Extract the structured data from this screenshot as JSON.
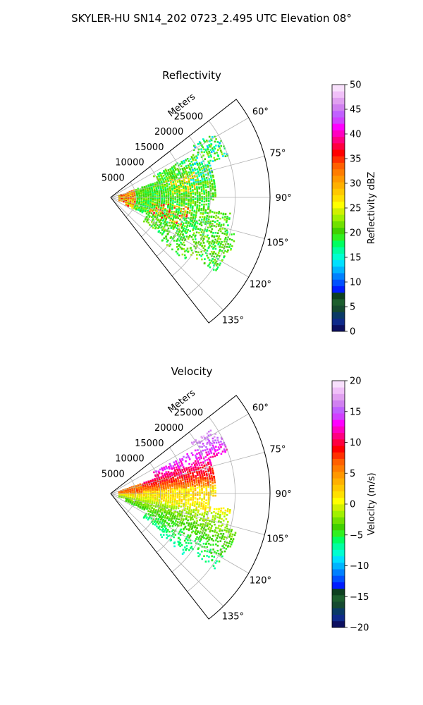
{
  "figure": {
    "suptitle": "SKYLER-HU  SN14_202  0723_2.495 UTC Elevation 08°"
  },
  "chart_data": [
    {
      "type": "polar-sector",
      "title": "Reflectivity",
      "radial_label": "Meters",
      "radial_ticks": [
        "5000",
        "10000",
        "15000",
        "20000",
        "25000"
      ],
      "radial_tick_values": [
        5000,
        10000,
        15000,
        20000,
        25000
      ],
      "rlim": [
        0,
        32000
      ],
      "theta_range_deg": [
        52,
        142
      ],
      "angle_ticks": [
        "60°",
        "75°",
        "90°",
        "105°",
        "120°",
        "135°"
      ],
      "angle_tick_values": [
        60,
        75,
        90,
        105,
        120,
        135
      ],
      "grid": true,
      "colorbar": {
        "label": "Reflectivity dBZ",
        "range": [
          0,
          50
        ],
        "ticks": [
          "0",
          "5",
          "10",
          "15",
          "20",
          "25",
          "30",
          "35",
          "40",
          "45",
          "50"
        ],
        "colors": [
          "#0d1060",
          "#0f2a8a",
          "#0a3a66",
          "#154a30",
          "#1c5e2e",
          "#0e4020",
          "#001cff",
          "#0050ff",
          "#0080ff",
          "#00b4ff",
          "#00e0ff",
          "#00ffd0",
          "#00ffa0",
          "#00ff60",
          "#30f020",
          "#40d000",
          "#70e000",
          "#a0f000",
          "#d0f000",
          "#ffff00",
          "#ffe000",
          "#ffc800",
          "#ffb000",
          "#ff9800",
          "#ff7c00",
          "#ff6000",
          "#ff3000",
          "#ff0000",
          "#ff0040",
          "#ff0080",
          "#ff00c0",
          "#ff00ff",
          "#d040ff",
          "#c060ff",
          "#d080f0",
          "#e0a0f0",
          "#f0c0f8",
          "#f8e0fc"
        ]
      }
    },
    {
      "type": "polar-sector",
      "title": "Velocity",
      "radial_label": "Meters",
      "radial_ticks": [
        "5000",
        "10000",
        "15000",
        "20000",
        "25000"
      ],
      "radial_tick_values": [
        5000,
        10000,
        15000,
        20000,
        25000
      ],
      "rlim": [
        0,
        32000
      ],
      "theta_range_deg": [
        52,
        142
      ],
      "angle_ticks": [
        "60°",
        "75°",
        "90°",
        "105°",
        "120°",
        "135°"
      ],
      "angle_tick_values": [
        60,
        75,
        90,
        105,
        120,
        135
      ],
      "grid": true,
      "colorbar": {
        "label": "Velocity (m/s)",
        "range": [
          -20,
          20
        ],
        "ticks": [
          "−20",
          "−15",
          "−10",
          "−5",
          "0",
          "5",
          "10",
          "15",
          "20"
        ],
        "colors": [
          "#0d1060",
          "#0f2a8a",
          "#0a3a66",
          "#154a30",
          "#1c5e2e",
          "#0e4020",
          "#001cff",
          "#0050ff",
          "#0080ff",
          "#00b4ff",
          "#00e0ff",
          "#00ffd0",
          "#00ffa0",
          "#00ff60",
          "#30f020",
          "#40d000",
          "#70e000",
          "#a0f000",
          "#d0f000",
          "#ffff00",
          "#ffe000",
          "#ffc800",
          "#ffb000",
          "#ff9800",
          "#ff7c00",
          "#ff6000",
          "#ff3000",
          "#ff0000",
          "#ff0040",
          "#ff0080",
          "#ff00c0",
          "#ff00ff",
          "#d040ff",
          "#c060ff",
          "#d080f0",
          "#e0a0f0",
          "#f0c0f8",
          "#f8e0fc"
        ]
      }
    }
  ]
}
